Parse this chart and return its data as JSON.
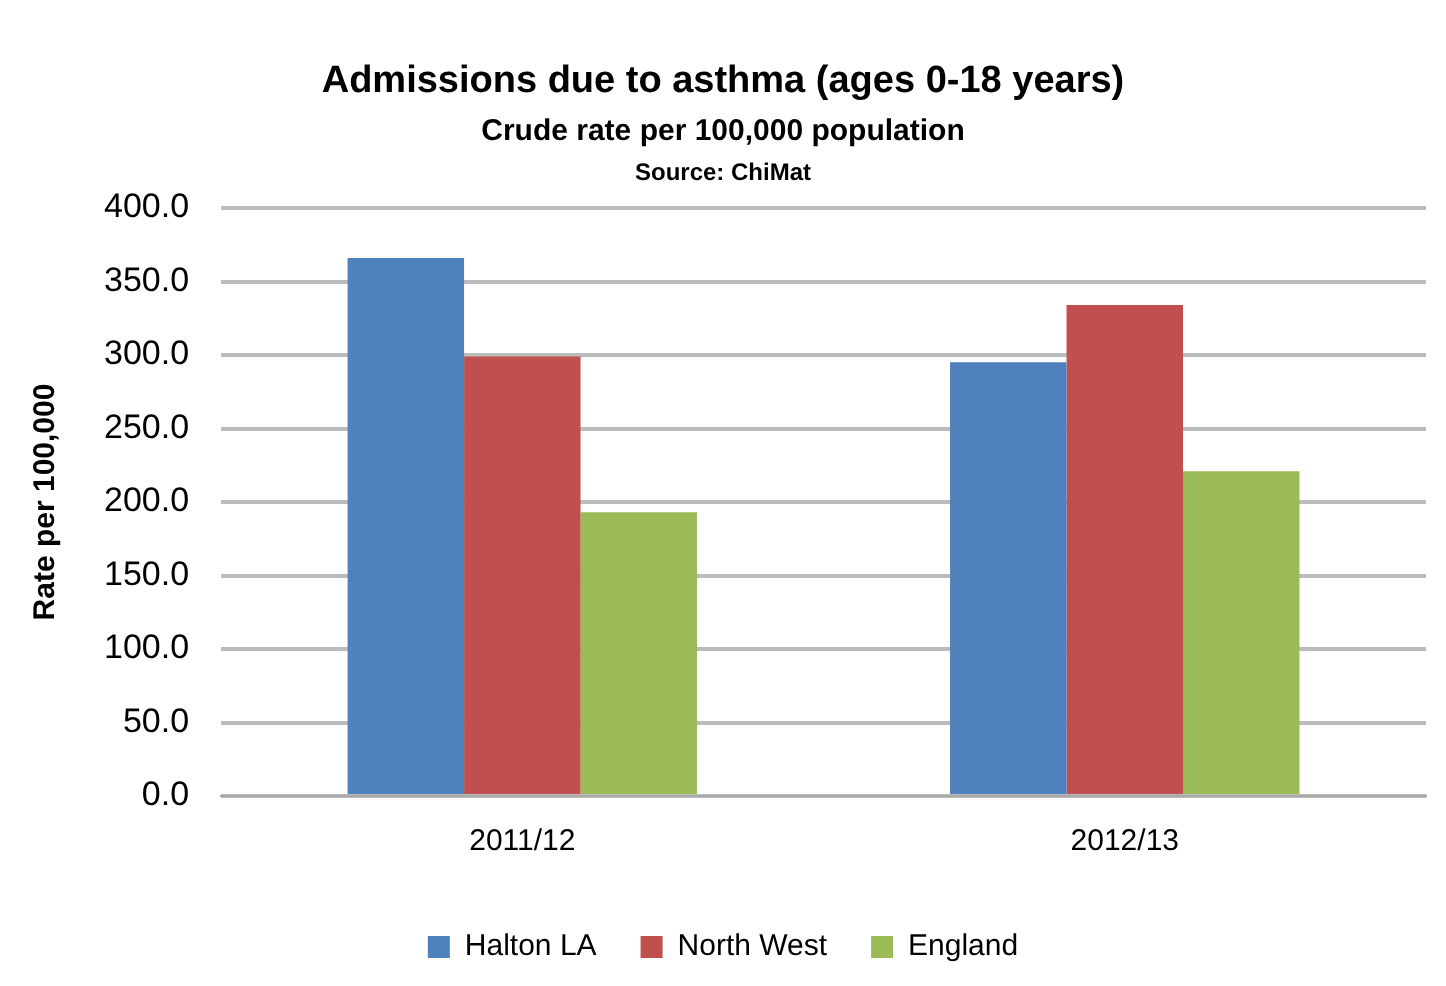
{
  "chart_data": {
    "type": "bar",
    "title": "Admissions due to asthma (ages 0-18 years)",
    "subtitle": "Crude rate per 100,000 population",
    "annotations": [
      "Source: ChiMat"
    ],
    "ylabel": "Rate per 100,000",
    "categories": [
      "2011/12",
      "2012/13"
    ],
    "series": [
      {
        "name": "Halton LA",
        "color": "#4f81bd",
        "values": [
          366,
          295
        ]
      },
      {
        "name": "North West",
        "color": "#c0504d",
        "values": [
          299,
          334
        ]
      },
      {
        "name": "England",
        "color": "#9bbb59",
        "values": [
          193,
          221
        ]
      }
    ],
    "ylim": [
      0,
      400
    ],
    "yticks": [
      {
        "value": 0,
        "label": "0.0"
      },
      {
        "value": 50,
        "label": "50.0"
      },
      {
        "value": 100,
        "label": "100.0"
      },
      {
        "value": 150,
        "label": "150.0"
      },
      {
        "value": 200,
        "label": "200.0"
      },
      {
        "value": 250,
        "label": "250.0"
      },
      {
        "value": 300,
        "label": "300.0"
      },
      {
        "value": 350,
        "label": "350.0"
      },
      {
        "value": 400,
        "label": "400.0"
      }
    ],
    "grid": "y",
    "legend": "bottom"
  }
}
